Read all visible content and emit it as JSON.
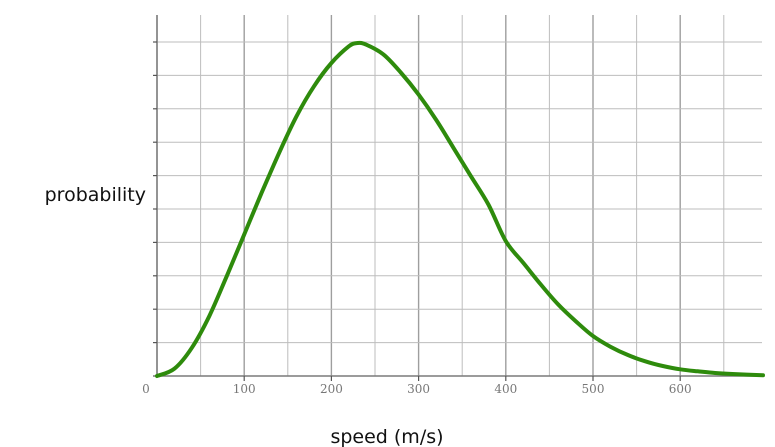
{
  "chart_data": {
    "type": "line",
    "xlabel": "speed (m/s)",
    "ylabel": "probability",
    "xlim": [
      0,
      695
    ],
    "ylim": [
      0,
      1
    ],
    "x_ticks": [
      0,
      100,
      200,
      300,
      400,
      500,
      600
    ],
    "x_tick_labels": [
      "0",
      "100",
      "200",
      "300",
      "400",
      "500",
      "600"
    ],
    "grid": true,
    "series": [
      {
        "color": "#2e8b0c",
        "x": [
          0,
          20,
          40,
          60,
          80,
          100,
          120,
          140,
          160,
          180,
          200,
          220,
          230,
          240,
          260,
          280,
          300,
          320,
          340,
          360,
          380,
          400,
          420,
          440,
          460,
          480,
          500,
          520,
          540,
          560,
          580,
          600,
          620,
          640,
          660,
          695
        ],
        "y": [
          0,
          0.022,
          0.085,
          0.18,
          0.3,
          0.425,
          0.55,
          0.67,
          0.78,
          0.87,
          0.94,
          0.99,
          1.0,
          0.995,
          0.965,
          0.91,
          0.845,
          0.77,
          0.685,
          0.6,
          0.515,
          0.405,
          0.34,
          0.275,
          0.215,
          0.165,
          0.12,
          0.088,
          0.063,
          0.044,
          0.03,
          0.02,
          0.014,
          0.009,
          0.006,
          0.002
        ]
      }
    ]
  }
}
